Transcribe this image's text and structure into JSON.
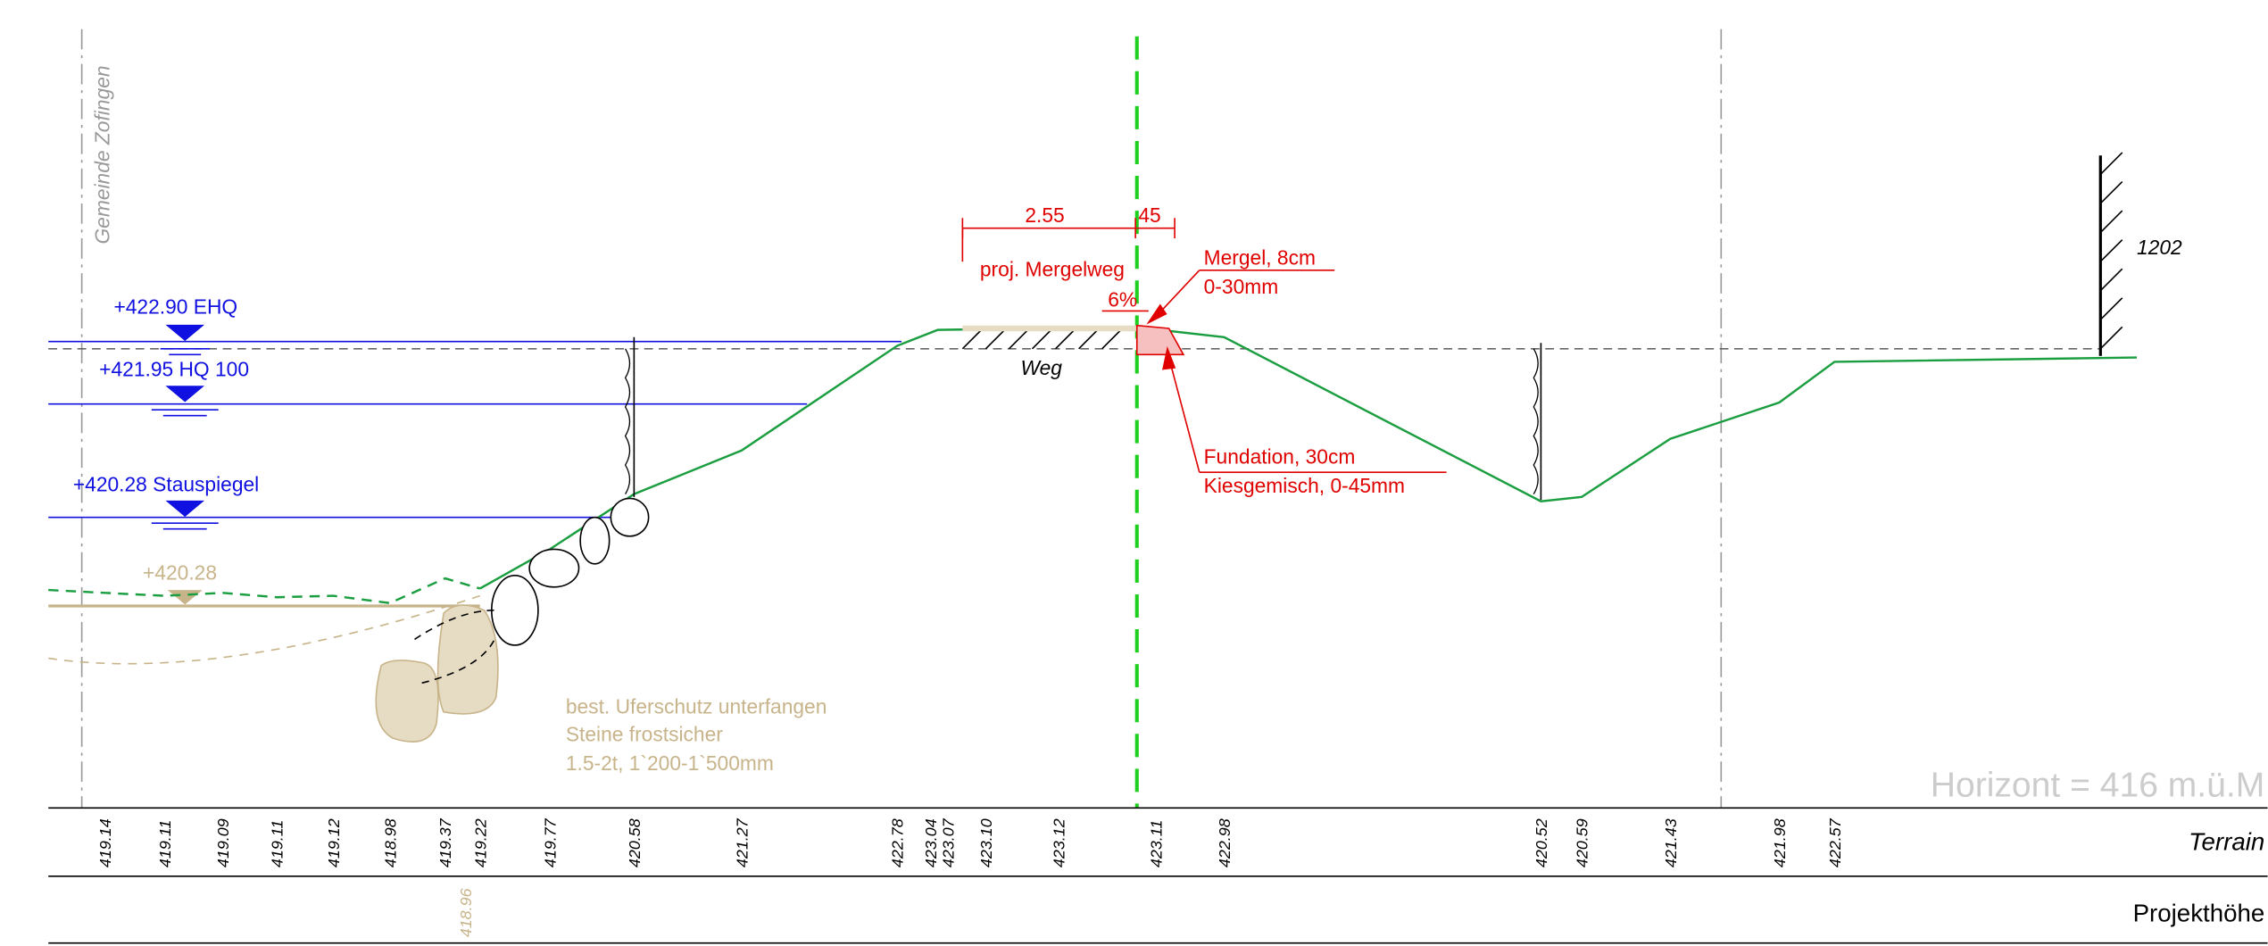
{
  "municipality": "Gemeinde Zofingen",
  "water_levels": [
    "+422.90 EHQ",
    "+421.95 HQ 100",
    "+420.28 Stauspiegel",
    "+420.28"
  ],
  "path": {
    "width_left": "2.55",
    "width_right": "45",
    "label": "proj. Mergelweg",
    "slope": "6%",
    "name": "Weg"
  },
  "layers": {
    "top": [
      "Mergel, 8cm",
      "0-30mm"
    ],
    "base": [
      "Fundation, 30cm",
      "Kiesgemisch, 0-45mm"
    ]
  },
  "parcel": "1202",
  "bank_protection": [
    "best. Uferschutz unterfangen",
    "Steine frostsicher",
    "1.5-2t, 1`200-1`500mm"
  ],
  "horizon": "Horizont = 416 m.ü.M",
  "rows": {
    "terrain": "Terrain",
    "project": "Projekthöhe"
  },
  "terrain_heights": [
    "419.14",
    "419.11",
    "419.09",
    "419.11",
    "419.12",
    "418.98",
    "419.37",
    "419.22",
    "419.77",
    "420.58",
    "421.27",
    "422.78",
    "423.04",
    "423.07",
    "423.10",
    "423.12",
    "423.11",
    "422.98",
    "420.52",
    "420.59",
    "421.43",
    "421.98",
    "422.57"
  ],
  "project_heights": [
    "418.96"
  ]
}
